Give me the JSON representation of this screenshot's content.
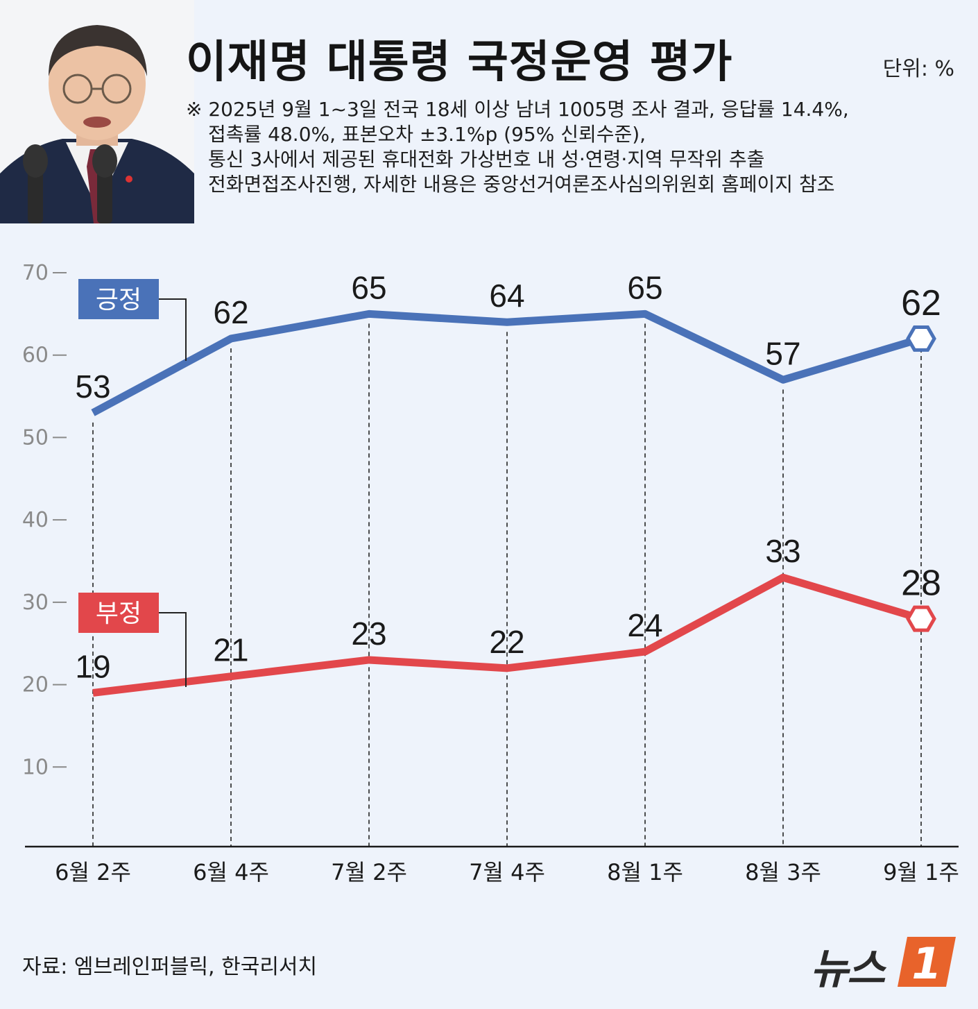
{
  "header": {
    "title": "이재명 대통령 국정운영 평가",
    "unit": "단위: %",
    "notes": [
      "※ 2025년 9월 1~3일 전국 18세 이상 남녀 1005명 조사 결과, 응답률 14.4%,",
      "접촉률 48.0%, 표본오차 ±3.1%p (95% 신뢰수준),",
      "통신 3사에서 제공된 휴대전화 가상번호 내 성·연령·지역 무작위 추출",
      "전화면접조사진행, 자세한 내용은 중앙선거여론조사심의위원회 홈페이지 참조"
    ]
  },
  "footer": {
    "source": "자료: 엠브레인퍼블릭, 한국리서치",
    "logo_text": "뉴스",
    "logo_mark": "1"
  },
  "colors": {
    "background": "#eef3fb",
    "positive": "#4a72b8",
    "negative": "#e2474b",
    "logo_orange": "#e8632b",
    "axis": "#1a1a1a",
    "tick_label": "#8a8a8a"
  },
  "chart_data": {
    "type": "line",
    "categories": [
      "6월 2주",
      "6월 4주",
      "7월 2주",
      "7월 4주",
      "8월 1주",
      "8월 3주",
      "9월 1주"
    ],
    "series": [
      {
        "name": "긍정",
        "color": "#4a72b8",
        "values": [
          53,
          62,
          65,
          64,
          65,
          57,
          62
        ]
      },
      {
        "name": "부정",
        "color": "#e2474b",
        "values": [
          19,
          21,
          23,
          22,
          24,
          33,
          28
        ]
      }
    ],
    "ylim": [
      0,
      70
    ],
    "yticks": [
      "10",
      "20",
      "30",
      "40",
      "50",
      "60",
      "70"
    ],
    "legend_placement": "inline labels near series start",
    "last_point_marker": "hexagon",
    "grid": "dashed vertical lines at each category"
  }
}
